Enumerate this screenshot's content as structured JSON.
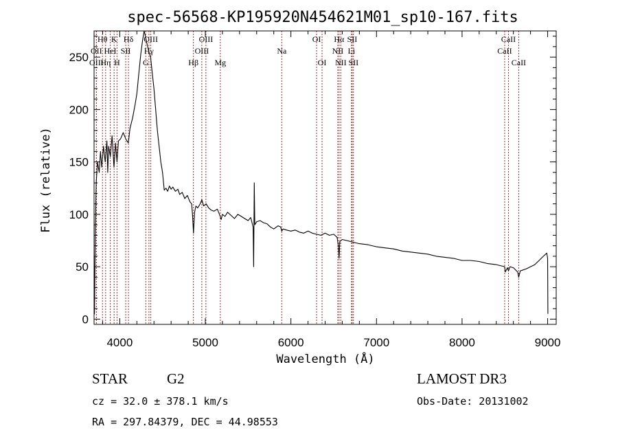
{
  "chart_data": {
    "type": "line",
    "title": "spec-56568-KP195920N454621M01_sp10-167.fits",
    "xlabel": "Wavelength (Å)",
    "ylabel": "Flux (relative)",
    "xlim": [
      3700,
      9100
    ],
    "ylim": [
      -5,
      275
    ],
    "xticks": [
      4000,
      5000,
      6000,
      7000,
      8000,
      9000
    ],
    "xtick_labels": [
      "4000",
      "5000",
      "6000",
      "7000",
      "8000",
      "9000"
    ],
    "yticks": [
      0,
      50,
      100,
      150,
      200,
      250
    ],
    "ytick_labels": [
      "0",
      "50",
      "100",
      "150",
      "200",
      "250"
    ],
    "series": [
      {
        "name": "spectrum",
        "color": "#000000",
        "points": [
          [
            3700,
            60
          ],
          [
            3705,
            5
          ],
          [
            3715,
            90
          ],
          [
            3725,
            130
          ],
          [
            3740,
            150
          ],
          [
            3760,
            140
          ],
          [
            3775,
            160
          ],
          [
            3790,
            145
          ],
          [
            3810,
            165
          ],
          [
            3830,
            150
          ],
          [
            3850,
            170
          ],
          [
            3860,
            140
          ],
          [
            3870,
            165
          ],
          [
            3890,
            155
          ],
          [
            3910,
            175
          ],
          [
            3933,
            145
          ],
          [
            3950,
            168
          ],
          [
            3968,
            150
          ],
          [
            3985,
            170
          ],
          [
            4010,
            172
          ],
          [
            4040,
            178
          ],
          [
            4070,
            172
          ],
          [
            4100,
            168
          ],
          [
            4120,
            182
          ],
          [
            4150,
            192
          ],
          [
            4180,
            205
          ],
          [
            4200,
            215
          ],
          [
            4220,
            232
          ],
          [
            4245,
            252
          ],
          [
            4265,
            265
          ],
          [
            4285,
            275
          ],
          [
            4300,
            270
          ],
          [
            4320,
            262
          ],
          [
            4340,
            255
          ],
          [
            4360,
            250
          ],
          [
            4380,
            235
          ],
          [
            4400,
            220
          ],
          [
            4420,
            200
          ],
          [
            4440,
            180
          ],
          [
            4460,
            165
          ],
          [
            4480,
            150
          ],
          [
            4500,
            140
          ],
          [
            4520,
            123
          ],
          [
            4540,
            125
          ],
          [
            4560,
            122
          ],
          [
            4580,
            127
          ],
          [
            4600,
            124
          ],
          [
            4620,
            126
          ],
          [
            4650,
            122
          ],
          [
            4680,
            124
          ],
          [
            4700,
            119
          ],
          [
            4730,
            121
          ],
          [
            4760,
            115
          ],
          [
            4790,
            118
          ],
          [
            4820,
            112
          ],
          [
            4840,
            110
          ],
          [
            4850,
            100
          ],
          [
            4862,
            82
          ],
          [
            4875,
            102
          ],
          [
            4890,
            108
          ],
          [
            4910,
            106
          ],
          [
            4940,
            110
          ],
          [
            4960,
            114
          ],
          [
            4980,
            108
          ],
          [
            5010,
            110
          ],
          [
            5040,
            106
          ],
          [
            5070,
            104
          ],
          [
            5100,
            103
          ],
          [
            5140,
            105
          ],
          [
            5170,
            99
          ],
          [
            5185,
            95
          ],
          [
            5200,
            100
          ],
          [
            5230,
            98
          ],
          [
            5260,
            102
          ],
          [
            5300,
            99
          ],
          [
            5340,
            96
          ],
          [
            5380,
            100
          ],
          [
            5420,
            98
          ],
          [
            5460,
            96
          ],
          [
            5500,
            94
          ],
          [
            5530,
            97
          ],
          [
            5558,
            88
          ],
          [
            5565,
            50
          ],
          [
            5572,
            130
          ],
          [
            5578,
            90
          ],
          [
            5600,
            93
          ],
          [
            5640,
            94
          ],
          [
            5680,
            92
          ],
          [
            5720,
            91
          ],
          [
            5760,
            88
          ],
          [
            5800,
            86
          ],
          [
            5850,
            89
          ],
          [
            5880,
            88
          ],
          [
            5893,
            84
          ],
          [
            5910,
            86
          ],
          [
            5950,
            85
          ],
          [
            6000,
            84
          ],
          [
            6050,
            85
          ],
          [
            6100,
            83
          ],
          [
            6150,
            82
          ],
          [
            6200,
            84
          ],
          [
            6250,
            82
          ],
          [
            6300,
            81
          ],
          [
            6350,
            80
          ],
          [
            6400,
            82
          ],
          [
            6450,
            80
          ],
          [
            6500,
            81
          ],
          [
            6540,
            78
          ],
          [
            6555,
            70
          ],
          [
            6563,
            58
          ],
          [
            6572,
            74
          ],
          [
            6600,
            76
          ],
          [
            6650,
            75
          ],
          [
            6700,
            74
          ],
          [
            6750,
            73
          ],
          [
            6800,
            72
          ],
          [
            6900,
            71
          ],
          [
            7000,
            69
          ],
          [
            7100,
            68
          ],
          [
            7200,
            67
          ],
          [
            7300,
            65
          ],
          [
            7400,
            64
          ],
          [
            7500,
            63
          ],
          [
            7600,
            62
          ],
          [
            7700,
            60
          ],
          [
            7800,
            59
          ],
          [
            7900,
            58
          ],
          [
            8000,
            56
          ],
          [
            8100,
            56
          ],
          [
            8200,
            55
          ],
          [
            8300,
            53
          ],
          [
            8400,
            52
          ],
          [
            8498,
            50
          ],
          [
            8505,
            45
          ],
          [
            8530,
            49
          ],
          [
            8542,
            46
          ],
          [
            8560,
            50
          ],
          [
            8600,
            49
          ],
          [
            8650,
            45
          ],
          [
            8662,
            40
          ],
          [
            8680,
            46
          ],
          [
            8750,
            48
          ],
          [
            8800,
            50
          ],
          [
            8850,
            52
          ],
          [
            8900,
            56
          ],
          [
            8950,
            60
          ],
          [
            8990,
            63
          ],
          [
            9000,
            58
          ],
          [
            9003,
            5
          ]
        ]
      }
    ],
    "spectral_lines": [
      {
        "wavelength": 3798,
        "label": "Hθ",
        "row": 0
      },
      {
        "wavelength": 3727,
        "label": "OII",
        "row": 1
      },
      {
        "wavelength": 3727,
        "label": "OIII",
        "row": 2
      },
      {
        "wavelength": 3835,
        "label": "Hη",
        "row": 2
      },
      {
        "wavelength": 3889,
        "label": "HeI",
        "row": 1
      },
      {
        "wavelength": 3934,
        "label": "K",
        "row": 0
      },
      {
        "wavelength": 3968,
        "label": "H",
        "row": 2
      },
      {
        "wavelength": 4070,
        "label": "SII",
        "row": 1
      },
      {
        "wavelength": 4102,
        "label": "Hδ",
        "row": 0
      },
      {
        "wavelength": 4304,
        "label": "G",
        "row": 2
      },
      {
        "wavelength": 4341,
        "label": "Hγ",
        "row": 1
      },
      {
        "wavelength": 4363,
        "label": "OIII",
        "row": 0
      },
      {
        "wavelength": 4861,
        "label": "Hβ",
        "row": 2
      },
      {
        "wavelength": 4959,
        "label": "OIII",
        "row": 1
      },
      {
        "wavelength": 5007,
        "label": "OIII",
        "row": 0
      },
      {
        "wavelength": 5175,
        "label": "Mg",
        "row": 2
      },
      {
        "wavelength": 5893,
        "label": "Na",
        "row": 1
      },
      {
        "wavelength": 6300,
        "label": "OI",
        "row": 0
      },
      {
        "wavelength": 6364,
        "label": "OI",
        "row": 2
      },
      {
        "wavelength": 6548,
        "label": "NII",
        "row": 1
      },
      {
        "wavelength": 6583,
        "label": "NII",
        "row": 2
      },
      {
        "wavelength": 6563,
        "label": "Hα",
        "row": 0
      },
      {
        "wavelength": 6708,
        "label": "Li",
        "row": 1
      },
      {
        "wavelength": 6716,
        "label": "SII",
        "row": 0
      },
      {
        "wavelength": 6731,
        "label": "SII",
        "row": 2
      },
      {
        "wavelength": 8498,
        "label": "CaII",
        "row": 1
      },
      {
        "wavelength": 8542,
        "label": "CaII",
        "row": 0
      },
      {
        "wavelength": 8662,
        "label": "CaII",
        "row": 2
      }
    ],
    "line_marker_color": "#b22222"
  },
  "info": {
    "object_class": "STAR",
    "subclass": "G2",
    "survey": "LAMOST DR3",
    "redshift": "cz = 32.0 ± 378.1 km/s",
    "obs_date": "Obs-Date: 20131002",
    "coords": "RA = 297.84379, DEC =  44.98553"
  }
}
